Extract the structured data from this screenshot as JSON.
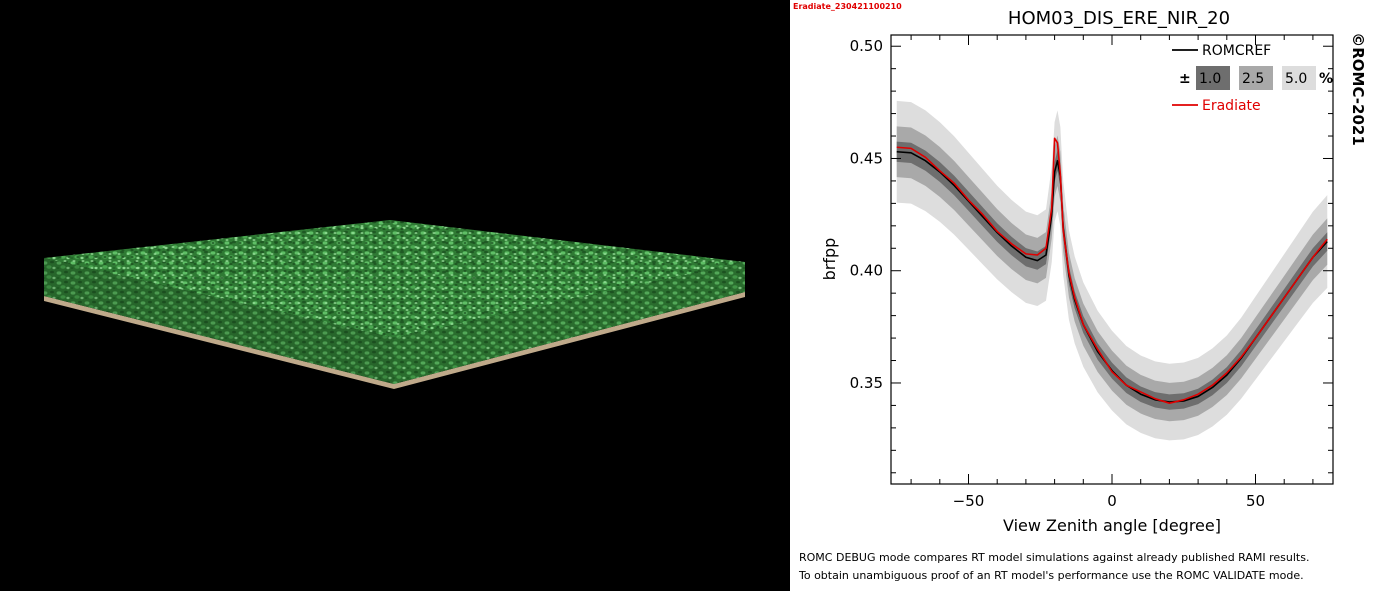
{
  "left_panel": {
    "icon": "vegetation-canopy-scene"
  },
  "stamp": "Eradiate_230421100210",
  "chart_data": {
    "type": "line",
    "title": "HOM03_DIS_ERE_NIR_20",
    "xlabel": "View Zenith angle [degree]",
    "ylabel": "brfpp",
    "copyright": "©ROMC-2021",
    "xlim": [
      -77,
      77
    ],
    "ylim": [
      0.305,
      0.505
    ],
    "xticks": [
      -50,
      0,
      50
    ],
    "xtick_labels": [
      "−50",
      "0",
      "50"
    ],
    "yticks": [
      0.35,
      0.4,
      0.45,
      0.5
    ],
    "ytick_labels": [
      "0.35",
      "0.40",
      "0.45",
      "0.50"
    ],
    "grid": false,
    "legend_position": "top-right",
    "legend": {
      "reference_label": "ROMCREF",
      "band_prefix": "±",
      "band_labels": [
        "1.0",
        "2.5",
        "5.0"
      ],
      "band_suffix": "%",
      "model_label": "Eradiate"
    },
    "tolerance_bands_percent": [
      1.0,
      2.5,
      5.0
    ],
    "colors": {
      "reference": "#000000",
      "model": "#e00000",
      "band_1": "#6e6e6e",
      "band_2_5": "#a9a9a9",
      "band_5": "#dddddd"
    },
    "x": [
      -75,
      -70,
      -65,
      -60,
      -55,
      -50,
      -45,
      -40,
      -35,
      -30,
      -26,
      -23,
      -21,
      -20,
      -19,
      -18,
      -17,
      -15,
      -13,
      -10,
      -5,
      0,
      5,
      10,
      15,
      20,
      25,
      30,
      35,
      40,
      45,
      50,
      55,
      60,
      65,
      70,
      75
    ],
    "series": [
      {
        "name": "ROMCREF",
        "values": [
          0.453,
          0.4525,
          0.449,
          0.444,
          0.438,
          0.431,
          0.424,
          0.417,
          0.411,
          0.406,
          0.4045,
          0.407,
          0.425,
          0.444,
          0.449,
          0.442,
          0.419,
          0.398,
          0.387,
          0.376,
          0.364,
          0.3555,
          0.349,
          0.345,
          0.3425,
          0.3415,
          0.342,
          0.344,
          0.348,
          0.3535,
          0.361,
          0.37,
          0.379,
          0.388,
          0.397,
          0.406,
          0.413
        ]
      },
      {
        "name": "Eradiate",
        "values": [
          0.455,
          0.4545,
          0.4505,
          0.4445,
          0.439,
          0.4315,
          0.425,
          0.4175,
          0.412,
          0.4075,
          0.407,
          0.41,
          0.428,
          0.459,
          0.457,
          0.443,
          0.418,
          0.399,
          0.388,
          0.376,
          0.365,
          0.355,
          0.349,
          0.346,
          0.343,
          0.341,
          0.3425,
          0.345,
          0.349,
          0.3545,
          0.3615,
          0.37,
          0.379,
          0.388,
          0.397,
          0.406,
          0.414
        ]
      }
    ]
  },
  "footnote": {
    "line1": "ROMC DEBUG mode compares RT model simulations against already published RAMI results.",
    "line2": "To obtain unambiguous proof of an RT model's performance use the ROMC VALIDATE mode."
  }
}
